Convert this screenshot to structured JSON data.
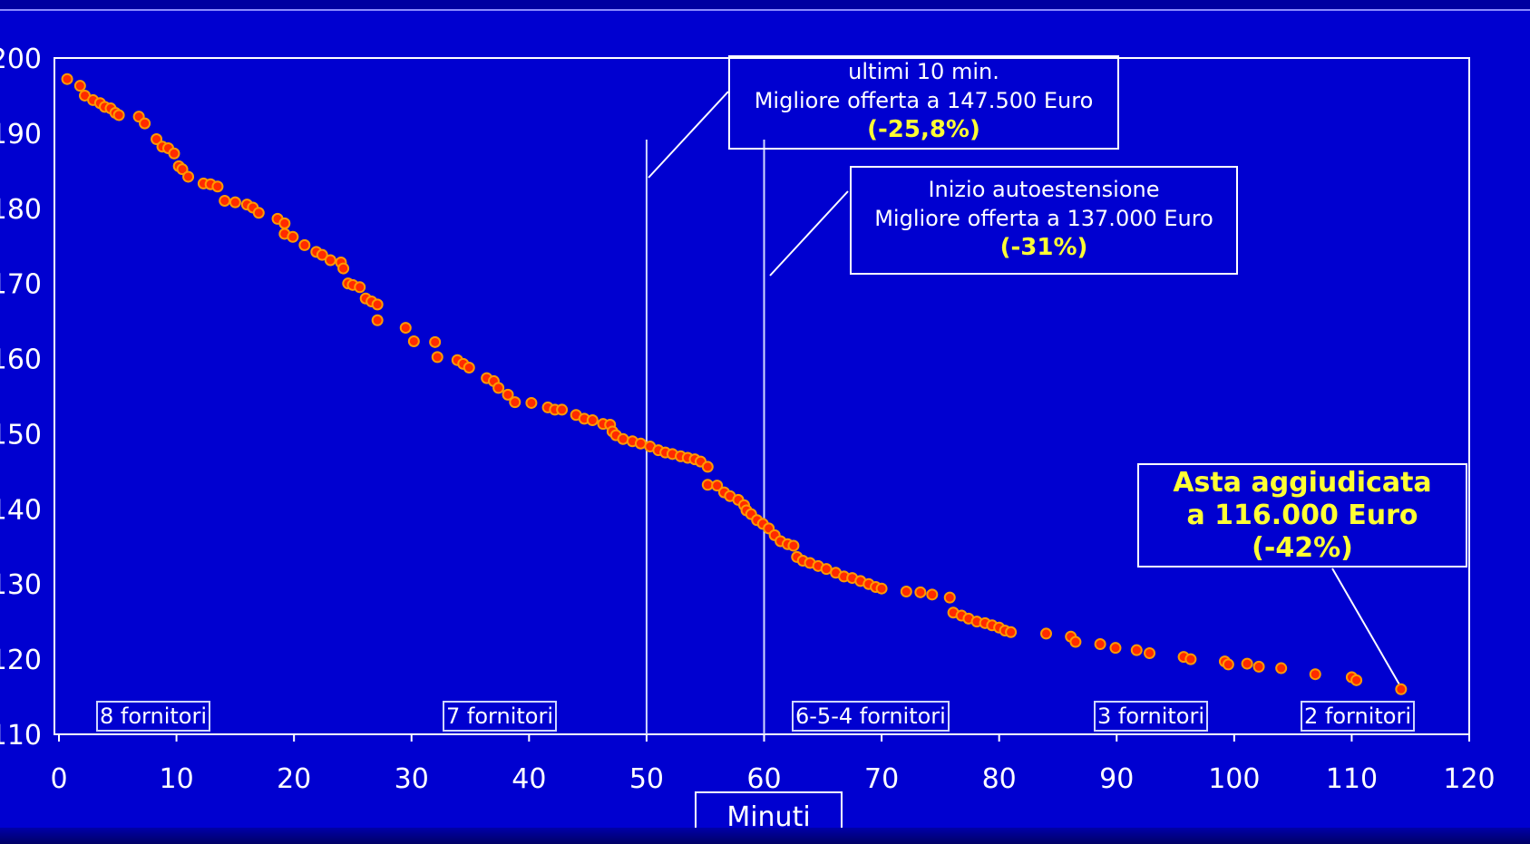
{
  "chart_data": {
    "type": "scatter",
    "xlabel": "Minuti",
    "ylabel": "",
    "xlim": [
      0,
      120
    ],
    "ylim": [
      110,
      200
    ],
    "x_ticks": [
      "0",
      "10",
      "20",
      "30",
      "40",
      "50",
      "60",
      "70",
      "80",
      "90",
      "100",
      "110",
      "120"
    ],
    "y_ticks": [
      "110",
      "120",
      "130",
      "140",
      "150",
      "160",
      "170",
      "180",
      "190",
      "200"
    ],
    "colors": {
      "background": "#0000d0",
      "point": "#ff2a00",
      "point_edge": "#ff9900",
      "frame": "#ffffff",
      "highlight": "#ffff33"
    },
    "vertical_lines": [
      50,
      60
    ],
    "series": [
      {
        "points": [
          [
            0.7,
            197.2
          ],
          [
            1.8,
            196.3
          ],
          [
            2.2,
            195.0
          ],
          [
            2.9,
            194.4
          ],
          [
            3.5,
            194.0
          ],
          [
            3.9,
            193.5
          ],
          [
            4.4,
            193.3
          ],
          [
            4.8,
            192.7
          ],
          [
            5.1,
            192.4
          ],
          [
            6.8,
            192.2
          ],
          [
            7.3,
            191.3
          ],
          [
            8.3,
            189.2
          ],
          [
            8.8,
            188.2
          ],
          [
            9.3,
            188.0
          ],
          [
            9.8,
            187.3
          ],
          [
            10.2,
            185.6
          ],
          [
            10.5,
            185.2
          ],
          [
            11.0,
            184.2
          ],
          [
            12.3,
            183.3
          ],
          [
            12.9,
            183.2
          ],
          [
            13.5,
            182.9
          ],
          [
            14.1,
            181.0
          ],
          [
            15.0,
            180.8
          ],
          [
            16.0,
            180.5
          ],
          [
            16.5,
            180.1
          ],
          [
            17.0,
            179.4
          ],
          [
            18.6,
            178.6
          ],
          [
            19.2,
            178.0
          ],
          [
            19.2,
            176.6
          ],
          [
            19.9,
            176.2
          ],
          [
            20.9,
            175.1
          ],
          [
            21.9,
            174.2
          ],
          [
            22.4,
            173.8
          ],
          [
            23.1,
            173.1
          ],
          [
            24.0,
            172.8
          ],
          [
            24.2,
            172.0
          ],
          [
            24.6,
            170.0
          ],
          [
            25.0,
            169.8
          ],
          [
            25.6,
            169.5
          ],
          [
            26.1,
            168.0
          ],
          [
            26.6,
            167.6
          ],
          [
            27.1,
            167.2
          ],
          [
            27.1,
            165.1
          ],
          [
            29.5,
            164.1
          ],
          [
            30.2,
            162.3
          ],
          [
            32.0,
            162.2
          ],
          [
            32.2,
            160.2
          ],
          [
            33.9,
            159.8
          ],
          [
            34.4,
            159.3
          ],
          [
            34.9,
            158.8
          ],
          [
            36.4,
            157.4
          ],
          [
            37.0,
            157.0
          ],
          [
            37.4,
            156.1
          ],
          [
            38.2,
            155.2
          ],
          [
            38.8,
            154.2
          ],
          [
            40.2,
            154.1
          ],
          [
            41.6,
            153.5
          ],
          [
            42.2,
            153.2
          ],
          [
            42.8,
            153.2
          ],
          [
            44.0,
            152.5
          ],
          [
            44.7,
            152.0
          ],
          [
            45.4,
            151.8
          ],
          [
            46.3,
            151.3
          ],
          [
            46.9,
            151.2
          ],
          [
            47.1,
            150.3
          ],
          [
            47.4,
            149.8
          ],
          [
            48.0,
            149.3
          ],
          [
            48.8,
            149.0
          ],
          [
            49.5,
            148.7
          ],
          [
            50.3,
            148.3
          ],
          [
            51.0,
            147.8
          ],
          [
            51.6,
            147.5
          ],
          [
            52.2,
            147.3
          ],
          [
            52.9,
            147.0
          ],
          [
            53.5,
            146.8
          ],
          [
            54.1,
            146.6
          ],
          [
            54.6,
            146.3
          ],
          [
            55.2,
            145.6
          ],
          [
            55.2,
            143.2
          ],
          [
            56.0,
            143.1
          ],
          [
            56.6,
            142.2
          ],
          [
            57.1,
            141.7
          ],
          [
            57.8,
            141.2
          ],
          [
            58.3,
            140.5
          ],
          [
            58.5,
            139.8
          ],
          [
            58.9,
            139.3
          ],
          [
            59.4,
            138.5
          ],
          [
            59.9,
            138.0
          ],
          [
            60.4,
            137.4
          ],
          [
            60.9,
            136.5
          ],
          [
            61.4,
            135.7
          ],
          [
            62.0,
            135.3
          ],
          [
            62.5,
            135.1
          ],
          [
            62.8,
            133.6
          ],
          [
            63.3,
            133.1
          ],
          [
            63.9,
            132.8
          ],
          [
            64.6,
            132.4
          ],
          [
            65.3,
            132.0
          ],
          [
            66.1,
            131.5
          ],
          [
            66.8,
            131.0
          ],
          [
            67.5,
            130.8
          ],
          [
            68.2,
            130.4
          ],
          [
            68.9,
            130.0
          ],
          [
            69.5,
            129.6
          ],
          [
            70.0,
            129.4
          ],
          [
            72.1,
            129.0
          ],
          [
            73.3,
            128.9
          ],
          [
            74.3,
            128.6
          ],
          [
            75.8,
            128.2
          ],
          [
            76.1,
            126.2
          ],
          [
            76.8,
            125.8
          ],
          [
            77.4,
            125.4
          ],
          [
            78.1,
            125.0
          ],
          [
            78.8,
            124.8
          ],
          [
            79.4,
            124.5
          ],
          [
            80.0,
            124.2
          ],
          [
            80.5,
            123.8
          ],
          [
            81.0,
            123.6
          ],
          [
            84.0,
            123.4
          ],
          [
            86.1,
            123.0
          ],
          [
            86.5,
            122.3
          ],
          [
            88.6,
            122.0
          ],
          [
            89.9,
            121.5
          ],
          [
            91.7,
            121.2
          ],
          [
            92.8,
            120.8
          ],
          [
            95.7,
            120.3
          ],
          [
            96.3,
            120.0
          ],
          [
            99.2,
            119.7
          ],
          [
            99.5,
            119.3
          ],
          [
            101.1,
            119.4
          ],
          [
            102.1,
            119.0
          ],
          [
            104.0,
            118.8
          ],
          [
            106.9,
            118.0
          ],
          [
            110.0,
            117.6
          ],
          [
            110.4,
            117.2
          ],
          [
            114.2,
            116.0
          ]
        ]
      }
    ]
  },
  "callouts": {
    "last10": {
      "line1": "ultimi 10 min.",
      "line2": "Migliore offerta a 147.500 Euro",
      "pct": "(-25,8%)"
    },
    "autoext": {
      "line1": "Inizio autoestensione",
      "line2": "Migliore offerta a 137.000 Euro",
      "pct": "(-31%)"
    },
    "final": {
      "line1": "Asta aggiudicata",
      "line2": "a 116.000 Euro",
      "pct": "(-42%)"
    }
  },
  "segments": [
    "8 fornitori",
    "7 fornitori",
    "6-5-4 fornitori",
    "3 fornitori",
    "2 fornitori"
  ]
}
